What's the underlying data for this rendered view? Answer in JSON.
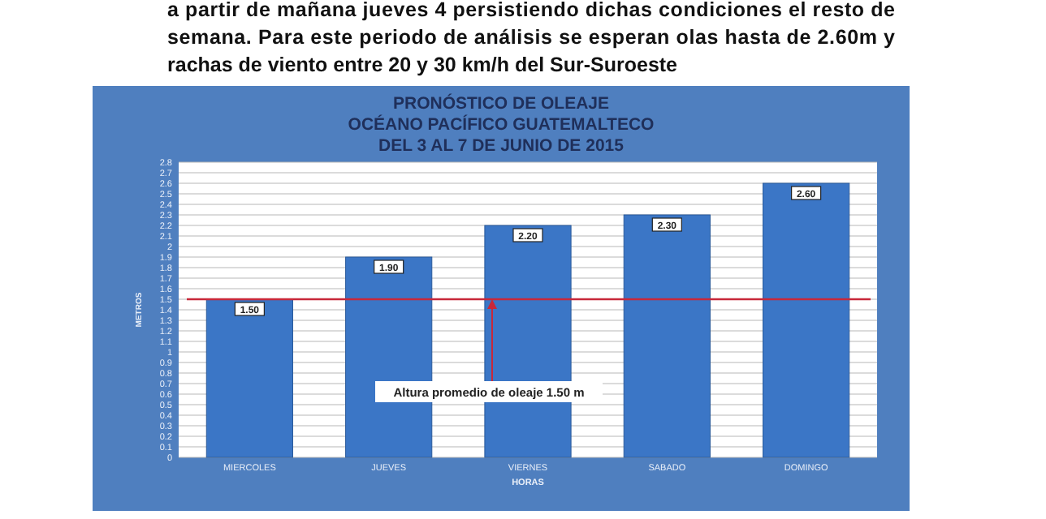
{
  "chart_data": {
    "type": "bar",
    "title": "PRONÓSTICO DE OLEAJE\nOCÉANO PACÍFICO GUATEMALTECO\nDEL 3 AL 7 DE JUNIO DE 2015",
    "annotations": [
      "a partir de mañana jueves 4 persistiendo dichas condiciones el resto de",
      "semana. Para este periodo de análisis se esperan olas hasta de 2.60m y",
      "rachas de viento entre 20 y 30 km/h del Sur-Suroeste"
    ],
    "xlabel": "HORAS",
    "ylabel": "METROS",
    "categories": [
      "MIERCOLES",
      "JUEVES",
      "VIERNES",
      "SABADO",
      "DOMINGO"
    ],
    "values": [
      1.5,
      1.9,
      2.2,
      2.3,
      2.6
    ],
    "value_labels": [
      "1.50",
      "1.90",
      "2.20",
      "2.30",
      "2.60"
    ],
    "color": "#3b76c6",
    "ylim": [
      0,
      2.8
    ],
    "yticks": [
      0,
      0.1,
      0.2,
      0.3,
      0.4,
      0.5,
      0.6,
      0.7,
      0.8,
      0.9,
      1,
      1.1,
      1.2,
      1.3,
      1.4,
      1.5,
      1.6,
      1.7,
      1.8,
      1.9,
      2,
      2.1,
      2.2,
      2.3,
      2.4,
      2.5,
      2.6,
      2.7,
      2.8
    ],
    "grid": "y",
    "ref_lines": [
      {
        "axis": "y",
        "value": 1.5,
        "label": "Altura promedio de oleaje 1.50 m",
        "color": "#c8283a"
      }
    ]
  }
}
